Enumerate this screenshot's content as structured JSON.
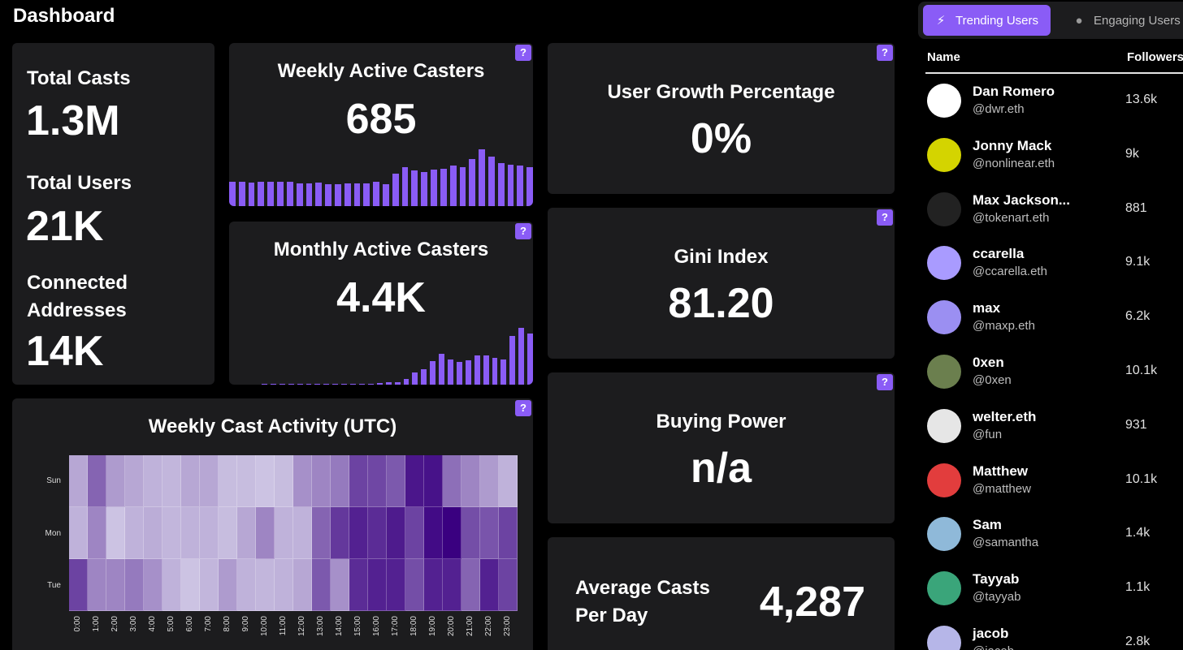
{
  "page_title": "Dashboard",
  "summary": {
    "total_casts_label": "Total Casts",
    "total_casts_value": "1.3M",
    "total_users_label": "Total Users",
    "total_users_value": "21K",
    "connected_label": "Connected Addresses",
    "connected_value": "14K"
  },
  "help_label": "?",
  "weekly_active": {
    "title": "Weekly Active Casters",
    "value": "685",
    "series": [
      30,
      30,
      29,
      30,
      30,
      30,
      30,
      28,
      28,
      29,
      27,
      27,
      28,
      28,
      28,
      30,
      27,
      40,
      48,
      44,
      42,
      45,
      46,
      50,
      48,
      58,
      70,
      61,
      53,
      51,
      50,
      48
    ]
  },
  "monthly_active": {
    "title": "Monthly Active Casters",
    "value": "4.4K",
    "series": [
      1,
      1,
      1,
      1,
      1,
      1,
      1,
      1,
      1,
      1,
      1,
      2,
      2,
      3,
      4,
      5,
      10,
      21,
      27,
      42,
      54,
      44,
      40,
      43,
      52,
      52,
      47,
      44,
      86,
      100,
      90
    ]
  },
  "user_growth": {
    "title": "User Growth Percentage",
    "value": "0%"
  },
  "gini": {
    "title": "Gini Index",
    "value": "81.20"
  },
  "buying_power": {
    "title": "Buying Power",
    "value": "n/a"
  },
  "avg_casts": {
    "label": "Average Casts Per Day",
    "value": "4,287"
  },
  "heatmap": {
    "title": "Weekly Cast Activity (UTC)",
    "rows": [
      "Sun",
      "Mon",
      "Tue"
    ],
    "hours": [
      "0:00",
      "1:00",
      "2:00",
      "3:00",
      "4:00",
      "5:00",
      "6:00",
      "7:00",
      "8:00",
      "9:00",
      "10:00",
      "11:00",
      "12:00",
      "13:00",
      "14:00",
      "15:00",
      "16:00",
      "17:00",
      "18:00",
      "19:00",
      "20:00",
      "21:00",
      "22:00",
      "23:00"
    ],
    "values": [
      [
        0.25,
        0.55,
        0.3,
        0.25,
        0.2,
        0.18,
        0.25,
        0.25,
        0.15,
        0.15,
        0.12,
        0.15,
        0.35,
        0.4,
        0.45,
        0.7,
        0.68,
        0.6,
        0.9,
        0.92,
        0.5,
        0.4,
        0.3,
        0.2
      ],
      [
        0.2,
        0.4,
        0.12,
        0.2,
        0.22,
        0.18,
        0.2,
        0.2,
        0.15,
        0.25,
        0.4,
        0.2,
        0.2,
        0.55,
        0.75,
        0.85,
        0.8,
        0.88,
        0.7,
        0.95,
        1.0,
        0.65,
        0.62,
        0.7
      ],
      [
        0.7,
        0.4,
        0.4,
        0.45,
        0.35,
        0.2,
        0.12,
        0.18,
        0.3,
        0.2,
        0.18,
        0.2,
        0.25,
        0.6,
        0.35,
        0.8,
        0.85,
        0.85,
        0.65,
        0.85,
        0.85,
        0.55,
        0.85,
        0.7
      ]
    ]
  },
  "tabs": {
    "trending": "Trending Users",
    "engaging": "Engaging Users",
    "trending_icon": "bolt-icon",
    "engaging_icon": "lightbulb-icon"
  },
  "table": {
    "col_name": "Name",
    "col_followers": "Followers"
  },
  "users": [
    {
      "name": "Dan Romero",
      "handle": "@dwr.eth",
      "followers": "13.6k",
      "color": "#ffffff"
    },
    {
      "name": "Jonny Mack",
      "handle": "@nonlinear.eth",
      "followers": "9k",
      "color": "#d4d400"
    },
    {
      "name": "Max Jackson...",
      "handle": "@tokenart.eth",
      "followers": "881",
      "color": "#222222"
    },
    {
      "name": "ccarella",
      "handle": "@ccarella.eth",
      "followers": "9.1k",
      "color": "#a99bff"
    },
    {
      "name": "max",
      "handle": "@maxp.eth",
      "followers": "6.2k",
      "color": "#9b8ff2"
    },
    {
      "name": "0xen",
      "handle": "@0xen",
      "followers": "10.1k",
      "color": "#6b7f4e"
    },
    {
      "name": "welter.eth",
      "handle": "@fun",
      "followers": "931",
      "color": "#e6e6e6"
    },
    {
      "name": "Matthew",
      "handle": "@matthew",
      "followers": "10.1k",
      "color": "#e23d3d"
    },
    {
      "name": "Sam",
      "handle": "@samantha",
      "followers": "1.4k",
      "color": "#8fb9d9"
    },
    {
      "name": "Tayyab",
      "handle": "@tayyab",
      "followers": "1.1k",
      "color": "#3aa57a"
    },
    {
      "name": "jacob",
      "handle": "@jacob",
      "followers": "2.8k",
      "color": "#b6b6e8"
    }
  ]
}
